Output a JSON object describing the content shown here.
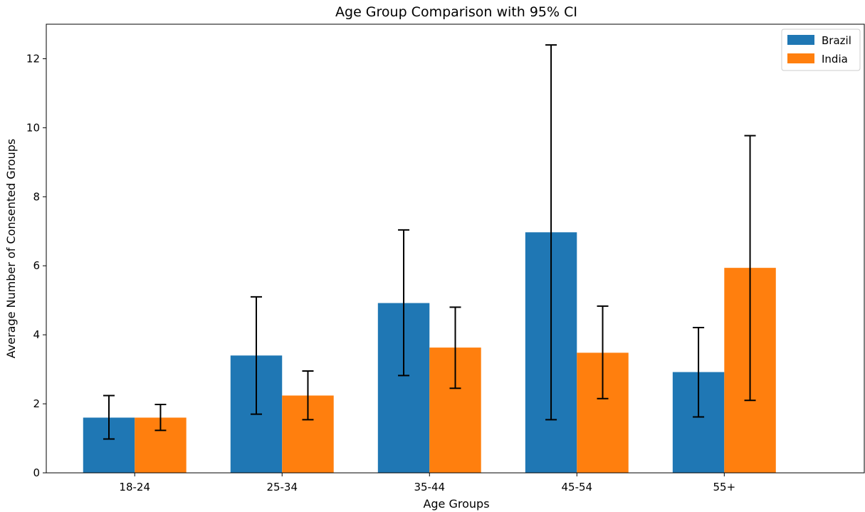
{
  "chart_data": {
    "type": "bar",
    "title": "Age Group Comparison with 95% CI",
    "xlabel": "Age Groups",
    "ylabel": "Average Number of Consented Groups",
    "categories": [
      "18-24",
      "25-34",
      "35-44",
      "45-54",
      "55+"
    ],
    "ylim": [
      0,
      13
    ],
    "yticks": [
      0,
      2,
      4,
      6,
      8,
      10,
      12
    ],
    "grid": false,
    "legend_position": "top-right",
    "series": [
      {
        "name": "Brazil",
        "color": "#1f77b4",
        "values": [
          1.6,
          3.4,
          4.92,
          6.97,
          2.92
        ],
        "ci_low": [
          0.98,
          1.7,
          2.82,
          1.54,
          1.62
        ],
        "ci_high": [
          2.24,
          5.1,
          7.04,
          12.4,
          4.21
        ]
      },
      {
        "name": "India",
        "color": "#ff7f0e",
        "values": [
          1.6,
          2.24,
          3.63,
          3.48,
          5.94
        ],
        "ci_low": [
          1.23,
          1.54,
          2.45,
          2.15,
          2.1
        ],
        "ci_high": [
          1.98,
          2.95,
          4.8,
          4.83,
          9.77
        ]
      }
    ]
  }
}
